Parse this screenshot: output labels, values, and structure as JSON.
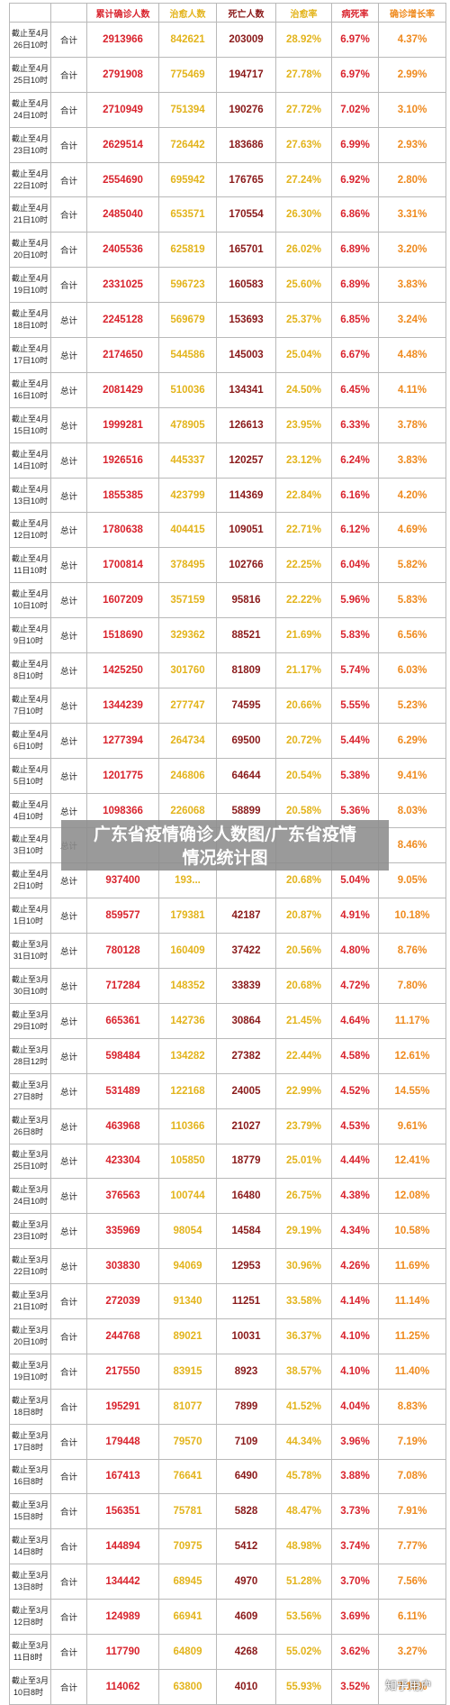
{
  "headers": [
    "",
    "",
    "累计确诊人数",
    "治愈人数",
    "死亡人数",
    "治愈率",
    "病死率",
    "确诊增长率"
  ],
  "rows": [
    {
      "date": [
        "截止至4月",
        "26日10时"
      ],
      "scope": "合计",
      "confirmed": "2913966",
      "cured": "842621",
      "deaths": "203009",
      "cure_rate": "28.92%",
      "death_rate": "6.97%",
      "growth": "4.37%"
    },
    {
      "date": [
        "截止至4月",
        "25日10时"
      ],
      "scope": "合计",
      "confirmed": "2791908",
      "cured": "775469",
      "deaths": "194717",
      "cure_rate": "27.78%",
      "death_rate": "6.97%",
      "growth": "2.99%"
    },
    {
      "date": [
        "截止至4月",
        "24日10时"
      ],
      "scope": "合计",
      "confirmed": "2710949",
      "cured": "751394",
      "deaths": "190276",
      "cure_rate": "27.72%",
      "death_rate": "7.02%",
      "growth": "3.10%"
    },
    {
      "date": [
        "截止至4月",
        "23日10时"
      ],
      "scope": "合计",
      "confirmed": "2629514",
      "cured": "726442",
      "deaths": "183686",
      "cure_rate": "27.63%",
      "death_rate": "6.99%",
      "growth": "2.93%"
    },
    {
      "date": [
        "截止至4月",
        "22日10时"
      ],
      "scope": "合计",
      "confirmed": "2554690",
      "cured": "695942",
      "deaths": "176765",
      "cure_rate": "27.24%",
      "death_rate": "6.92%",
      "growth": "2.80%"
    },
    {
      "date": [
        "截止至4月",
        "21日10时"
      ],
      "scope": "合计",
      "confirmed": "2485040",
      "cured": "653571",
      "deaths": "170554",
      "cure_rate": "26.30%",
      "death_rate": "6.86%",
      "growth": "3.31%"
    },
    {
      "date": [
        "截止至4月",
        "20日10时"
      ],
      "scope": "合计",
      "confirmed": "2405536",
      "cured": "625819",
      "deaths": "165701",
      "cure_rate": "26.02%",
      "death_rate": "6.89%",
      "growth": "3.20%"
    },
    {
      "date": [
        "截止至4月",
        "19日10时"
      ],
      "scope": "合计",
      "confirmed": "2331025",
      "cured": "596723",
      "deaths": "160583",
      "cure_rate": "25.60%",
      "death_rate": "6.89%",
      "growth": "3.83%"
    },
    {
      "date": [
        "截止至4月",
        "18日10时"
      ],
      "scope": "总计",
      "confirmed": "2245128",
      "cured": "569679",
      "deaths": "153693",
      "cure_rate": "25.37%",
      "death_rate": "6.85%",
      "growth": "3.24%"
    },
    {
      "date": [
        "截止至4月",
        "17日10时"
      ],
      "scope": "总计",
      "confirmed": "2174650",
      "cured": "544586",
      "deaths": "145003",
      "cure_rate": "25.04%",
      "death_rate": "6.67%",
      "growth": "4.48%"
    },
    {
      "date": [
        "截止至4月",
        "16日10时"
      ],
      "scope": "总计",
      "confirmed": "2081429",
      "cured": "510036",
      "deaths": "134341",
      "cure_rate": "24.50%",
      "death_rate": "6.45%",
      "growth": "4.11%"
    },
    {
      "date": [
        "截止至4月",
        "15日10时"
      ],
      "scope": "总计",
      "confirmed": "1999281",
      "cured": "478905",
      "deaths": "126613",
      "cure_rate": "23.95%",
      "death_rate": "6.33%",
      "growth": "3.78%"
    },
    {
      "date": [
        "截止至4月",
        "14日10时"
      ],
      "scope": "总计",
      "confirmed": "1926516",
      "cured": "445337",
      "deaths": "120257",
      "cure_rate": "23.12%",
      "death_rate": "6.24%",
      "growth": "3.83%"
    },
    {
      "date": [
        "截止至4月",
        "13日10时"
      ],
      "scope": "总计",
      "confirmed": "1855385",
      "cured": "423799",
      "deaths": "114369",
      "cure_rate": "22.84%",
      "death_rate": "6.16%",
      "growth": "4.20%"
    },
    {
      "date": [
        "截止至4月",
        "12日10时"
      ],
      "scope": "总计",
      "confirmed": "1780638",
      "cured": "404415",
      "deaths": "109051",
      "cure_rate": "22.71%",
      "death_rate": "6.12%",
      "growth": "4.69%"
    },
    {
      "date": [
        "截止至4月",
        "11日10时"
      ],
      "scope": "总计",
      "confirmed": "1700814",
      "cured": "378495",
      "deaths": "102766",
      "cure_rate": "22.25%",
      "death_rate": "6.04%",
      "growth": "5.82%"
    },
    {
      "date": [
        "截止至4月",
        "10日10时"
      ],
      "scope": "总计",
      "confirmed": "1607209",
      "cured": "357159",
      "deaths": "95816",
      "cure_rate": "22.22%",
      "death_rate": "5.96%",
      "growth": "5.83%"
    },
    {
      "date": [
        "截止至4月",
        "9日10时"
      ],
      "scope": "总计",
      "confirmed": "1518690",
      "cured": "329362",
      "deaths": "88521",
      "cure_rate": "21.69%",
      "death_rate": "5.83%",
      "growth": "6.56%"
    },
    {
      "date": [
        "截止至4月",
        "8日10时"
      ],
      "scope": "总计",
      "confirmed": "1425250",
      "cured": "301760",
      "deaths": "81809",
      "cure_rate": "21.17%",
      "death_rate": "5.74%",
      "growth": "6.03%"
    },
    {
      "date": [
        "截止至4月",
        "7日10时"
      ],
      "scope": "总计",
      "confirmed": "1344239",
      "cured": "277747",
      "deaths": "74595",
      "cure_rate": "20.66%",
      "death_rate": "5.55%",
      "growth": "5.23%"
    },
    {
      "date": [
        "截止至4月",
        "6日10时"
      ],
      "scope": "总计",
      "confirmed": "1277394",
      "cured": "264734",
      "deaths": "69500",
      "cure_rate": "20.72%",
      "death_rate": "5.44%",
      "growth": "6.29%"
    },
    {
      "date": [
        "截止至4月",
        "5日10时"
      ],
      "scope": "总计",
      "confirmed": "1201775",
      "cured": "246806",
      "deaths": "64644",
      "cure_rate": "20.54%",
      "death_rate": "5.38%",
      "growth": "9.41%"
    },
    {
      "date": [
        "截止至4月",
        "4日10时"
      ],
      "scope": "总计",
      "confirmed": "1098366",
      "cured": "226068",
      "deaths": "58899",
      "cure_rate": "20.58%",
      "death_rate": "5.36%",
      "growth": "8.03%"
    },
    {
      "date": [
        "截止至4月",
        "3日10时"
      ],
      "scope": "总计",
      "confirmed": "",
      "cured": "",
      "deaths": "",
      "cure_rate": "",
      "death_rate": "",
      "growth": "8.46%"
    },
    {
      "date": [
        "截止至4月",
        "2日10时"
      ],
      "scope": "总计",
      "confirmed": "937400",
      "cured": "193...",
      "deaths": "",
      "cure_rate": "20.68%",
      "death_rate": "5.04%",
      "growth": "9.05%"
    },
    {
      "date": [
        "截止至4月",
        "1日10时"
      ],
      "scope": "总计",
      "confirmed": "859577",
      "cured": "179381",
      "deaths": "42187",
      "cure_rate": "20.87%",
      "death_rate": "4.91%",
      "growth": "10.18%"
    },
    {
      "date": [
        "截止至3月",
        "31日10时"
      ],
      "scope": "总计",
      "confirmed": "780128",
      "cured": "160409",
      "deaths": "37422",
      "cure_rate": "20.56%",
      "death_rate": "4.80%",
      "growth": "8.76%"
    },
    {
      "date": [
        "截止至3月",
        "30日10时"
      ],
      "scope": "总计",
      "confirmed": "717284",
      "cured": "148352",
      "deaths": "33839",
      "cure_rate": "20.68%",
      "death_rate": "4.72%",
      "growth": "7.80%"
    },
    {
      "date": [
        "截止至3月",
        "29日10时"
      ],
      "scope": "总计",
      "confirmed": "665361",
      "cured": "142736",
      "deaths": "30864",
      "cure_rate": "21.45%",
      "death_rate": "4.64%",
      "growth": "11.17%"
    },
    {
      "date": [
        "截止至3月",
        "28日12时"
      ],
      "scope": "总计",
      "confirmed": "598484",
      "cured": "134282",
      "deaths": "27382",
      "cure_rate": "22.44%",
      "death_rate": "4.58%",
      "growth": "12.61%"
    },
    {
      "date": [
        "截止至3月",
        "27日8时"
      ],
      "scope": "总计",
      "confirmed": "531489",
      "cured": "122168",
      "deaths": "24005",
      "cure_rate": "22.99%",
      "death_rate": "4.52%",
      "growth": "14.55%"
    },
    {
      "date": [
        "截止至3月",
        "26日8时"
      ],
      "scope": "总计",
      "confirmed": "463968",
      "cured": "110366",
      "deaths": "21027",
      "cure_rate": "23.79%",
      "death_rate": "4.53%",
      "growth": "9.61%"
    },
    {
      "date": [
        "截止至3月",
        "25日10时"
      ],
      "scope": "总计",
      "confirmed": "423304",
      "cured": "105850",
      "deaths": "18779",
      "cure_rate": "25.01%",
      "death_rate": "4.44%",
      "growth": "12.41%"
    },
    {
      "date": [
        "截止至3月",
        "24日10时"
      ],
      "scope": "总计",
      "confirmed": "376563",
      "cured": "100744",
      "deaths": "16480",
      "cure_rate": "26.75%",
      "death_rate": "4.38%",
      "growth": "12.08%"
    },
    {
      "date": [
        "截止至3月",
        "23日10时"
      ],
      "scope": "总计",
      "confirmed": "335969",
      "cured": "98054",
      "deaths": "14584",
      "cure_rate": "29.19%",
      "death_rate": "4.34%",
      "growth": "10.58%"
    },
    {
      "date": [
        "截止至3月",
        "22日10时"
      ],
      "scope": "总计",
      "confirmed": "303830",
      "cured": "94069",
      "deaths": "12953",
      "cure_rate": "30.96%",
      "death_rate": "4.26%",
      "growth": "11.69%"
    },
    {
      "date": [
        "截止至3月",
        "21日10时"
      ],
      "scope": "合计",
      "confirmed": "272039",
      "cured": "91340",
      "deaths": "11251",
      "cure_rate": "33.58%",
      "death_rate": "4.14%",
      "growth": "11.14%"
    },
    {
      "date": [
        "截止至3月",
        "20日10时"
      ],
      "scope": "合计",
      "confirmed": "244768",
      "cured": "89021",
      "deaths": "10031",
      "cure_rate": "36.37%",
      "death_rate": "4.10%",
      "growth": "11.25%"
    },
    {
      "date": [
        "截止至3月",
        "19日10时"
      ],
      "scope": "合计",
      "confirmed": "217550",
      "cured": "83915",
      "deaths": "8923",
      "cure_rate": "38.57%",
      "death_rate": "4.10%",
      "growth": "11.40%"
    },
    {
      "date": [
        "截止至3月",
        "18日8时"
      ],
      "scope": "合计",
      "confirmed": "195291",
      "cured": "81077",
      "deaths": "7899",
      "cure_rate": "41.52%",
      "death_rate": "4.04%",
      "growth": "8.83%"
    },
    {
      "date": [
        "截止至3月",
        "17日8时"
      ],
      "scope": "合计",
      "confirmed": "179448",
      "cured": "79570",
      "deaths": "7109",
      "cure_rate": "44.34%",
      "death_rate": "3.96%",
      "growth": "7.19%"
    },
    {
      "date": [
        "截止至3月",
        "16日8时"
      ],
      "scope": "合计",
      "confirmed": "167413",
      "cured": "76641",
      "deaths": "6490",
      "cure_rate": "45.78%",
      "death_rate": "3.88%",
      "growth": "7.08%"
    },
    {
      "date": [
        "截止至3月",
        "15日8时"
      ],
      "scope": "合计",
      "confirmed": "156351",
      "cured": "75781",
      "deaths": "5828",
      "cure_rate": "48.47%",
      "death_rate": "3.73%",
      "growth": "7.91%"
    },
    {
      "date": [
        "截止至3月",
        "14日8时"
      ],
      "scope": "合计",
      "confirmed": "144894",
      "cured": "70975",
      "deaths": "5412",
      "cure_rate": "48.98%",
      "death_rate": "3.74%",
      "growth": "7.77%"
    },
    {
      "date": [
        "截止至3月",
        "13日8时"
      ],
      "scope": "合计",
      "confirmed": "134442",
      "cured": "68945",
      "deaths": "4970",
      "cure_rate": "51.28%",
      "death_rate": "3.70%",
      "growth": "7.56%"
    },
    {
      "date": [
        "截止至3月",
        "12日8时"
      ],
      "scope": "合计",
      "confirmed": "124989",
      "cured": "66941",
      "deaths": "4609",
      "cure_rate": "53.56%",
      "death_rate": "3.69%",
      "growth": "6.11%"
    },
    {
      "date": [
        "截止至3月",
        "11日8时"
      ],
      "scope": "合计",
      "confirmed": "117790",
      "cured": "64809",
      "deaths": "4268",
      "cure_rate": "55.02%",
      "death_rate": "3.62%",
      "growth": "3.27%"
    },
    {
      "date": [
        "截止至3月",
        "10日8时"
      ],
      "scope": "合计",
      "confirmed": "114062",
      "cured": "63800",
      "deaths": "4010",
      "cure_rate": "55.93%",
      "death_rate": "3.52%",
      "growth": "7.19%"
    }
  ],
  "overlay": {
    "line1": "广东省疫情确诊人数图/广东省疫情",
    "line2": "情况统计图"
  },
  "watermark": "知乎用户",
  "colors": {
    "confirmed": "#d9232d",
    "cured": "#e3b41c",
    "deaths": "#8a1a1a",
    "cure_rate": "#e3b41c",
    "death_rate": "#d9232d",
    "growth": "#ef8a1e"
  }
}
